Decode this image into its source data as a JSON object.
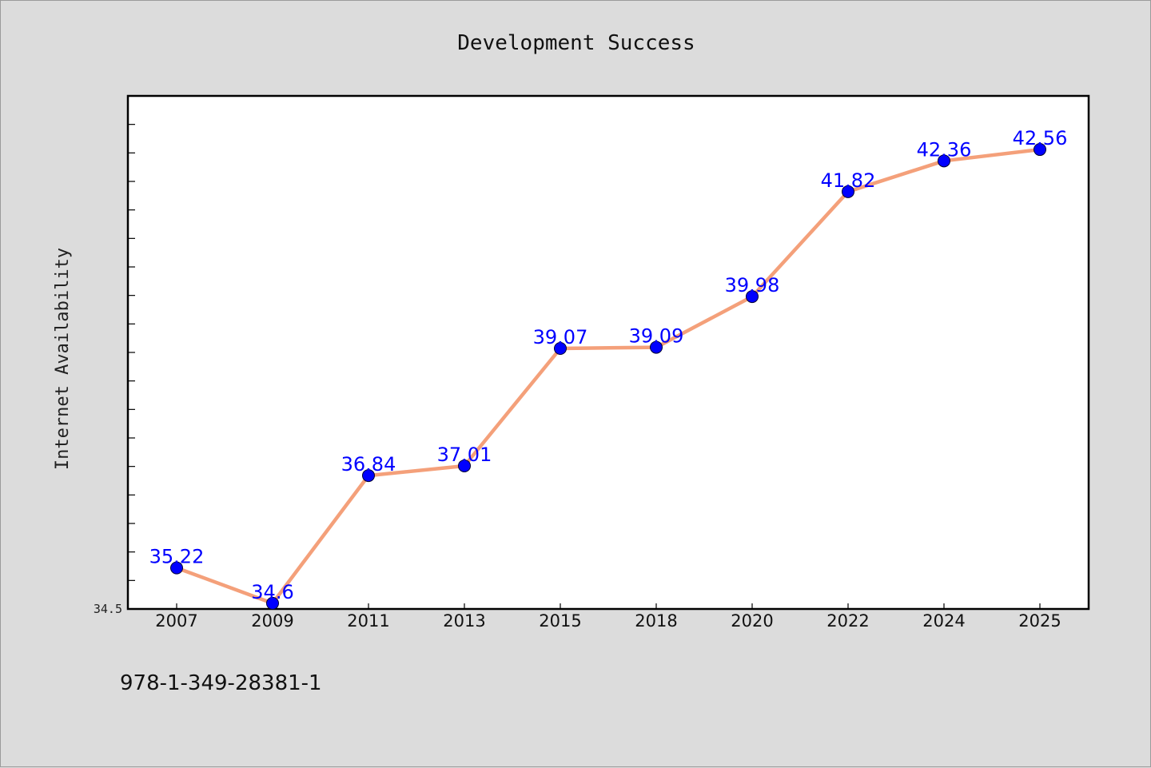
{
  "chart_data": {
    "type": "line",
    "title": "Development Success",
    "xlabel": "",
    "ylabel": "Internet Availability",
    "categories": [
      "2007",
      "2009",
      "2011",
      "2013",
      "2015",
      "2018",
      "2020",
      "2022",
      "2024",
      "2025"
    ],
    "series": [
      {
        "values": [
          35.22,
          34.6,
          36.84,
          37.01,
          39.07,
          39.09,
          39.98,
          41.82,
          42.36,
          42.56
        ],
        "data_labels": [
          "35.22",
          "34.6",
          "36.84",
          "37.01",
          "39.07",
          "39.09",
          "39.98",
          "41.82",
          "42.36",
          "42.56"
        ]
      }
    ],
    "ylim": [
      34.5,
      43.5
    ],
    "y_tick_label": "34.5",
    "grid": false,
    "legend": "none",
    "colors": {
      "line": "#f4a07a",
      "marker": "#0000ff",
      "data_label": "#0000ff",
      "plot_background": "#ffffff",
      "figure_background": "#dcdcdc"
    }
  },
  "footnote": "978-1-349-28381-1"
}
